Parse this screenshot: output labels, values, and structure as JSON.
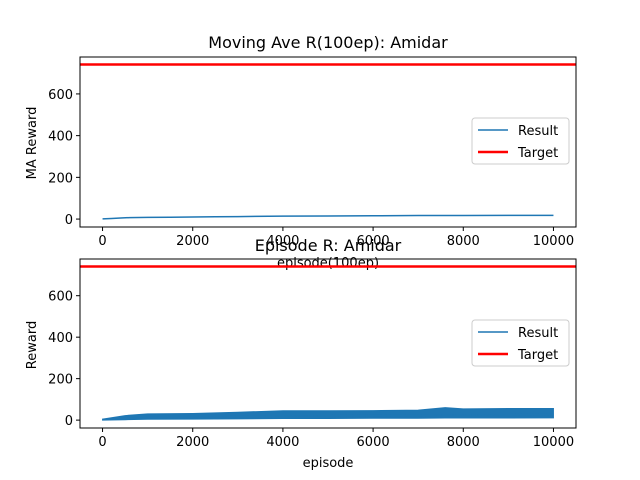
{
  "chart_data": [
    {
      "type": "line",
      "title": "Moving Ave R(100ep): Amidar",
      "xlabel": "episode(100ep)",
      "ylabel": "MA Reward",
      "xlim": [
        -500,
        10500
      ],
      "ylim": [
        -38,
        777
      ],
      "x_ticks": [
        0,
        2000,
        4000,
        6000,
        8000,
        10000
      ],
      "x_tick_labels": [
        "0",
        "2000",
        "4000",
        "6000",
        "8000",
        "10000"
      ],
      "y_ticks": [
        0,
        200,
        400,
        600
      ],
      "y_tick_labels": [
        "0",
        "200",
        "400",
        "600"
      ],
      "grid": false,
      "legend_position": "center-right",
      "series": [
        {
          "name": "Result",
          "color": "#1f77b4",
          "x": [
            0,
            200,
            400,
            600,
            1000,
            1500,
            2000,
            2500,
            3000,
            4000,
            5000,
            6000,
            7000,
            8000,
            9000,
            10000
          ],
          "y": [
            1,
            3,
            5,
            7,
            8,
            9,
            10,
            11,
            12,
            14,
            15,
            16,
            17,
            17,
            18,
            18
          ]
        },
        {
          "name": "Target",
          "color": "#ff0000",
          "x": [
            -500,
            10500
          ],
          "y": [
            741,
            741
          ]
        }
      ]
    },
    {
      "type": "line",
      "title": "Episode R: Amidar",
      "xlabel": "episode",
      "ylabel": "Reward",
      "xlim": [
        -500,
        10500
      ],
      "ylim": [
        -38,
        777
      ],
      "x_ticks": [
        0,
        2000,
        4000,
        6000,
        8000,
        10000
      ],
      "x_tick_labels": [
        "0",
        "2000",
        "4000",
        "6000",
        "8000",
        "10000"
      ],
      "y_ticks": [
        0,
        200,
        400,
        600
      ],
      "y_tick_labels": [
        "0",
        "200",
        "400",
        "600"
      ],
      "grid": false,
      "legend_position": "center-right",
      "series": [
        {
          "name": "Result",
          "color": "#1f77b4",
          "x": [
            0,
            500,
            1000,
            2000,
            3000,
            4000,
            5000,
            6000,
            7000,
            7600,
            8000,
            9000,
            10000
          ],
          "y_low": [
            0,
            2,
            4,
            5,
            6,
            8,
            8,
            9,
            9,
            10,
            10,
            10,
            11
          ],
          "y_high": [
            5,
            22,
            30,
            32,
            38,
            45,
            45,
            46,
            48,
            60,
            54,
            56,
            56
          ],
          "y_mid": [
            2,
            8,
            12,
            14,
            17,
            19,
            21,
            22,
            23,
            24,
            25,
            26,
            27
          ]
        },
        {
          "name": "Target",
          "color": "#ff0000",
          "x": [
            -500,
            10500
          ],
          "y": [
            741,
            741
          ]
        }
      ]
    }
  ]
}
